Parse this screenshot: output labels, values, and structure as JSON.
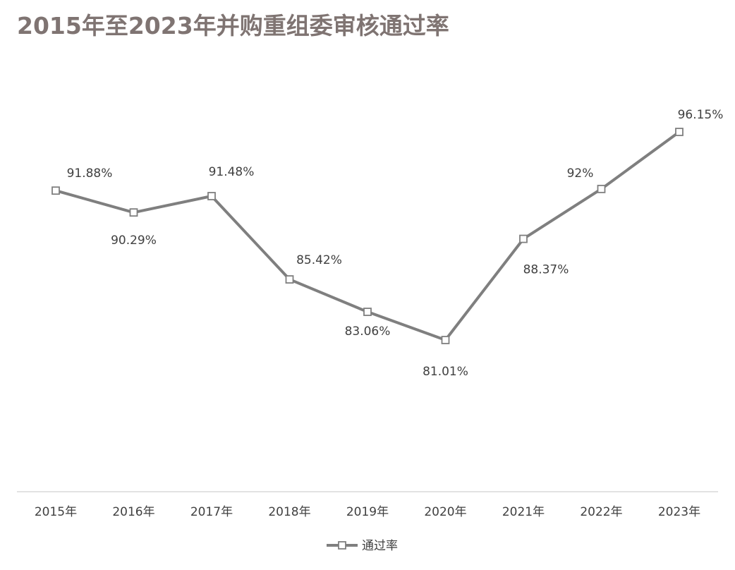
{
  "chart_data": {
    "type": "line",
    "title": "2015年至2023年并购重组委审核通过率",
    "categories": [
      "2015年",
      "2016年",
      "2017年",
      "2018年",
      "2019年",
      "2020年",
      "2021年",
      "2022年",
      "2023年"
    ],
    "series": [
      {
        "name": "通过率",
        "color": "#7f7f7f",
        "values": [
          91.88,
          90.29,
          91.48,
          85.42,
          83.06,
          81.01,
          88.37,
          92,
          96.15
        ],
        "value_labels": [
          "91.88%",
          "90.29%",
          "91.48%",
          "85.42%",
          "83.06%",
          "81.01%",
          "88.37%",
          "92%",
          "96.15%"
        ]
      }
    ],
    "legend": "bottom"
  }
}
